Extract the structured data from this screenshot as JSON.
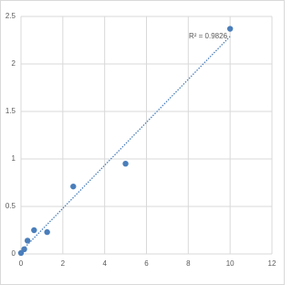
{
  "chart_data": {
    "type": "scatter",
    "annotation": "R² = 0.9826",
    "x": [
      0,
      0.156,
      0.3125,
      0.625,
      1.25,
      2.5,
      5,
      10
    ],
    "values": [
      0.01,
      0.05,
      0.14,
      0.25,
      0.23,
      0.71,
      0.95,
      2.37
    ],
    "color": "#4a7ebb",
    "trendline": true,
    "xlim": [
      0,
      12
    ],
    "xticks": [
      0,
      2,
      4,
      6,
      8,
      10,
      12
    ],
    "ylim": [
      0,
      2.5
    ],
    "yticks": [
      0,
      0.5,
      1,
      1.5,
      2,
      2.5
    ],
    "grid": true
  }
}
